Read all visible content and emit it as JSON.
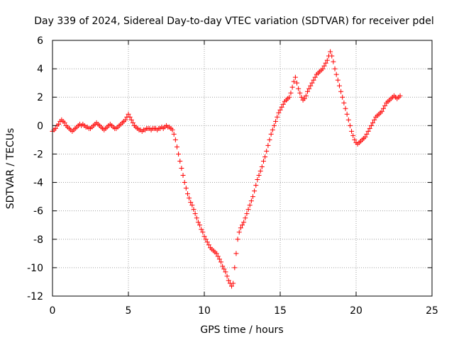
{
  "chart_data": {
    "type": "scatter",
    "title": "Day 339 of 2024, Sidereal Day-to-day VTEC variation (SDTVAR) for receiver pdel",
    "xlabel": "GPS time / hours",
    "ylabel": "SDTVAR / TECUs",
    "xlim": [
      0,
      25
    ],
    "ylim": [
      -12,
      6
    ],
    "xticks": [
      0,
      5,
      10,
      15,
      20,
      25
    ],
    "yticks": [
      -12,
      -10,
      -8,
      -6,
      -4,
      -2,
      0,
      2,
      4,
      6
    ],
    "xtick_labels": [
      "0",
      "5",
      "10",
      "15",
      "20",
      "25"
    ],
    "ytick_labels": [
      "-12",
      "-10",
      "-8",
      "-6",
      "-4",
      "-2",
      "0",
      "2",
      "4",
      "6"
    ],
    "grid": true,
    "marker": "plus",
    "series": [
      {
        "name": "SDTVAR",
        "color": "#ff0000",
        "points": [
          [
            0.0,
            -0.4
          ],
          [
            0.1,
            -0.3
          ],
          [
            0.2,
            -0.2
          ],
          [
            0.3,
            0.0
          ],
          [
            0.4,
            0.1
          ],
          [
            0.5,
            0.3
          ],
          [
            0.6,
            0.4
          ],
          [
            0.7,
            0.3
          ],
          [
            0.8,
            0.2
          ],
          [
            0.9,
            0.0
          ],
          [
            1.0,
            -0.1
          ],
          [
            1.1,
            -0.2
          ],
          [
            1.2,
            -0.3
          ],
          [
            1.3,
            -0.4
          ],
          [
            1.4,
            -0.3
          ],
          [
            1.5,
            -0.2
          ],
          [
            1.6,
            -0.1
          ],
          [
            1.7,
            0.0
          ],
          [
            1.8,
            0.1
          ],
          [
            1.9,
            0.0
          ],
          [
            2.0,
            0.1
          ],
          [
            2.1,
            0.0
          ],
          [
            2.2,
            -0.1
          ],
          [
            2.3,
            -0.1
          ],
          [
            2.4,
            -0.2
          ],
          [
            2.5,
            -0.2
          ],
          [
            2.6,
            -0.1
          ],
          [
            2.7,
            0.0
          ],
          [
            2.8,
            0.1
          ],
          [
            2.9,
            0.2
          ],
          [
            3.0,
            0.1
          ],
          [
            3.1,
            0.0
          ],
          [
            3.2,
            -0.1
          ],
          [
            3.3,
            -0.2
          ],
          [
            3.4,
            -0.3
          ],
          [
            3.5,
            -0.2
          ],
          [
            3.6,
            -0.1
          ],
          [
            3.7,
            0.0
          ],
          [
            3.8,
            0.1
          ],
          [
            3.9,
            0.0
          ],
          [
            4.0,
            -0.1
          ],
          [
            4.1,
            -0.2
          ],
          [
            4.2,
            -0.2
          ],
          [
            4.3,
            -0.1
          ],
          [
            4.4,
            0.0
          ],
          [
            4.5,
            0.1
          ],
          [
            4.6,
            0.2
          ],
          [
            4.7,
            0.3
          ],
          [
            4.8,
            0.4
          ],
          [
            4.9,
            0.6
          ],
          [
            5.0,
            0.8
          ],
          [
            5.1,
            0.6
          ],
          [
            5.2,
            0.4
          ],
          [
            5.3,
            0.2
          ],
          [
            5.4,
            0.0
          ],
          [
            5.5,
            -0.1
          ],
          [
            5.6,
            -0.2
          ],
          [
            5.7,
            -0.3
          ],
          [
            5.8,
            -0.3
          ],
          [
            5.9,
            -0.4
          ],
          [
            6.0,
            -0.3
          ],
          [
            6.1,
            -0.3
          ],
          [
            6.2,
            -0.2
          ],
          [
            6.3,
            -0.2
          ],
          [
            6.4,
            -0.2
          ],
          [
            6.5,
            -0.3
          ],
          [
            6.6,
            -0.2
          ],
          [
            6.7,
            -0.2
          ],
          [
            6.8,
            -0.2
          ],
          [
            6.9,
            -0.3
          ],
          [
            7.0,
            -0.2
          ],
          [
            7.1,
            -0.2
          ],
          [
            7.2,
            -0.1
          ],
          [
            7.3,
            -0.2
          ],
          [
            7.4,
            -0.1
          ],
          [
            7.5,
            0.0
          ],
          [
            7.6,
            -0.1
          ],
          [
            7.7,
            -0.1
          ],
          [
            7.8,
            -0.2
          ],
          [
            7.9,
            -0.3
          ],
          [
            8.0,
            -0.6
          ],
          [
            8.1,
            -1.0
          ],
          [
            8.2,
            -1.5
          ],
          [
            8.3,
            -2.0
          ],
          [
            8.4,
            -2.5
          ],
          [
            8.5,
            -3.0
          ],
          [
            8.6,
            -3.5
          ],
          [
            8.7,
            -4.0
          ],
          [
            8.8,
            -4.4
          ],
          [
            8.9,
            -4.8
          ],
          [
            9.0,
            -5.1
          ],
          [
            9.1,
            -5.4
          ],
          [
            9.2,
            -5.6
          ],
          [
            9.3,
            -5.9
          ],
          [
            9.4,
            -6.2
          ],
          [
            9.5,
            -6.5
          ],
          [
            9.6,
            -6.8
          ],
          [
            9.7,
            -7.0
          ],
          [
            9.8,
            -7.3
          ],
          [
            9.9,
            -7.5
          ],
          [
            10.0,
            -7.8
          ],
          [
            10.1,
            -8.0
          ],
          [
            10.2,
            -8.2
          ],
          [
            10.3,
            -8.4
          ],
          [
            10.4,
            -8.6
          ],
          [
            10.5,
            -8.7
          ],
          [
            10.6,
            -8.8
          ],
          [
            10.7,
            -8.9
          ],
          [
            10.8,
            -9.0
          ],
          [
            10.9,
            -9.2
          ],
          [
            11.0,
            -9.4
          ],
          [
            11.1,
            -9.6
          ],
          [
            11.2,
            -9.9
          ],
          [
            11.3,
            -10.1
          ],
          [
            11.4,
            -10.3
          ],
          [
            11.5,
            -10.6
          ],
          [
            11.6,
            -10.9
          ],
          [
            11.7,
            -11.1
          ],
          [
            11.8,
            -11.3
          ],
          [
            11.9,
            -11.1
          ],
          [
            12.0,
            -10.0
          ],
          [
            12.1,
            -9.0
          ],
          [
            12.2,
            -8.0
          ],
          [
            12.3,
            -7.5
          ],
          [
            12.4,
            -7.2
          ],
          [
            12.5,
            -7.0
          ],
          [
            12.6,
            -6.8
          ],
          [
            12.7,
            -6.5
          ],
          [
            12.8,
            -6.2
          ],
          [
            12.9,
            -5.9
          ],
          [
            13.0,
            -5.6
          ],
          [
            13.1,
            -5.3
          ],
          [
            13.2,
            -5.0
          ],
          [
            13.3,
            -4.6
          ],
          [
            13.4,
            -4.2
          ],
          [
            13.5,
            -3.8
          ],
          [
            13.6,
            -3.5
          ],
          [
            13.7,
            -3.2
          ],
          [
            13.8,
            -2.9
          ],
          [
            13.9,
            -2.5
          ],
          [
            14.0,
            -2.2
          ],
          [
            14.1,
            -1.8
          ],
          [
            14.2,
            -1.4
          ],
          [
            14.3,
            -1.0
          ],
          [
            14.4,
            -0.6
          ],
          [
            14.5,
            -0.3
          ],
          [
            14.6,
            0.0
          ],
          [
            14.7,
            0.3
          ],
          [
            14.8,
            0.6
          ],
          [
            14.9,
            0.9
          ],
          [
            15.0,
            1.1
          ],
          [
            15.1,
            1.3
          ],
          [
            15.2,
            1.5
          ],
          [
            15.3,
            1.7
          ],
          [
            15.4,
            1.8
          ],
          [
            15.5,
            1.9
          ],
          [
            15.6,
            2.0
          ],
          [
            15.7,
            2.3
          ],
          [
            15.8,
            2.7
          ],
          [
            15.9,
            3.1
          ],
          [
            16.0,
            3.4
          ],
          [
            16.1,
            3.0
          ],
          [
            16.2,
            2.6
          ],
          [
            16.3,
            2.3
          ],
          [
            16.4,
            2.0
          ],
          [
            16.5,
            1.8
          ],
          [
            16.6,
            1.9
          ],
          [
            16.7,
            2.1
          ],
          [
            16.8,
            2.4
          ],
          [
            16.9,
            2.6
          ],
          [
            17.0,
            2.8
          ],
          [
            17.1,
            3.0
          ],
          [
            17.2,
            3.2
          ],
          [
            17.3,
            3.4
          ],
          [
            17.4,
            3.6
          ],
          [
            17.5,
            3.7
          ],
          [
            17.6,
            3.8
          ],
          [
            17.7,
            3.9
          ],
          [
            17.8,
            4.0
          ],
          [
            17.9,
            4.2
          ],
          [
            18.0,
            4.4
          ],
          [
            18.1,
            4.6
          ],
          [
            18.2,
            4.9
          ],
          [
            18.3,
            5.2
          ],
          [
            18.4,
            4.9
          ],
          [
            18.5,
            4.5
          ],
          [
            18.6,
            4.0
          ],
          [
            18.7,
            3.6
          ],
          [
            18.8,
            3.2
          ],
          [
            18.9,
            2.8
          ],
          [
            19.0,
            2.4
          ],
          [
            19.1,
            2.0
          ],
          [
            19.2,
            1.6
          ],
          [
            19.3,
            1.2
          ],
          [
            19.4,
            0.8
          ],
          [
            19.5,
            0.4
          ],
          [
            19.6,
            0.0
          ],
          [
            19.7,
            -0.4
          ],
          [
            19.8,
            -0.7
          ],
          [
            19.9,
            -1.0
          ],
          [
            20.0,
            -1.2
          ],
          [
            20.1,
            -1.3
          ],
          [
            20.2,
            -1.2
          ],
          [
            20.3,
            -1.1
          ],
          [
            20.4,
            -1.0
          ],
          [
            20.5,
            -0.9
          ],
          [
            20.6,
            -0.8
          ],
          [
            20.7,
            -0.6
          ],
          [
            20.8,
            -0.4
          ],
          [
            20.9,
            -0.2
          ],
          [
            21.0,
            0.0
          ],
          [
            21.1,
            0.2
          ],
          [
            21.2,
            0.4
          ],
          [
            21.3,
            0.6
          ],
          [
            21.4,
            0.7
          ],
          [
            21.5,
            0.8
          ],
          [
            21.6,
            0.9
          ],
          [
            21.7,
            1.0
          ],
          [
            21.8,
            1.2
          ],
          [
            21.9,
            1.4
          ],
          [
            22.0,
            1.6
          ],
          [
            22.1,
            1.7
          ],
          [
            22.2,
            1.8
          ],
          [
            22.3,
            1.9
          ],
          [
            22.4,
            2.0
          ],
          [
            22.5,
            2.1
          ],
          [
            22.6,
            2.0
          ],
          [
            22.7,
            1.9
          ],
          [
            22.8,
            2.0
          ],
          [
            22.9,
            2.1
          ]
        ]
      }
    ]
  }
}
